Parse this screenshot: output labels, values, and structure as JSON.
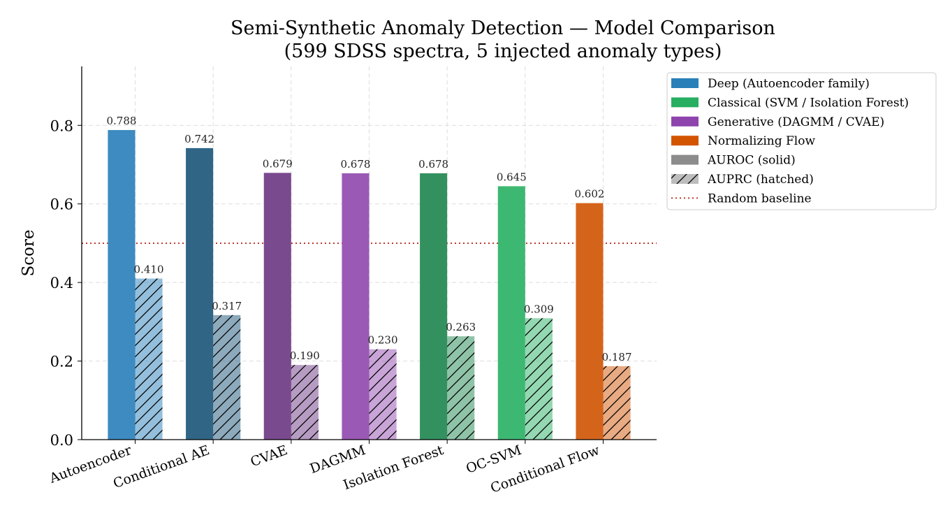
{
  "chart_data": {
    "type": "bar",
    "title": "Semi-Synthetic Anomaly Detection — Model Comparison",
    "subtitle": "(599 SDSS spectra, 5 injected anomaly types)",
    "xlabel": "",
    "ylabel": "Score",
    "ylim": [
      0,
      0.95
    ],
    "yticks": [
      "0.0",
      "0.2",
      "0.4",
      "0.6",
      "0.8"
    ],
    "grid": true,
    "legend_placement": "top-right",
    "categories": [
      "Autoencoder",
      "Conditional AE",
      "CVAE",
      "DAGMM",
      "Isolation Forest",
      "OC-SVM",
      "Conditional Flow"
    ],
    "series": [
      {
        "name": "AUROC (solid)",
        "values": [
          0.788,
          0.742,
          0.679,
          0.678,
          0.678,
          0.645,
          0.602
        ],
        "labels": [
          "0.788",
          "0.742",
          "0.679",
          "0.678",
          "0.678",
          "0.645",
          "0.602"
        ]
      },
      {
        "name": "AUPRC (hatched)",
        "values": [
          0.41,
          0.317,
          0.19,
          0.23,
          0.263,
          0.309,
          0.187
        ],
        "labels": [
          "0.410",
          "0.317",
          "0.190",
          "0.230",
          "0.263",
          "0.309",
          "0.187"
        ]
      }
    ],
    "bar_colors": [
      "#3d8bc0",
      "#306585",
      "#7a4a8f",
      "#9b59b6",
      "#339160",
      "#3db872",
      "#d5641b"
    ],
    "baseline": {
      "name": "Random baseline",
      "value": 0.5,
      "color": "#c0392b"
    },
    "legend": [
      {
        "label": "Deep (Autoencoder family)",
        "color": "#2980b9"
      },
      {
        "label": "Classical (SVM / Isolation Forest)",
        "color": "#27ae60"
      },
      {
        "label": "Generative (DAGMM / CVAE)",
        "color": "#8e44ad"
      },
      {
        "label": "Normalizing Flow",
        "color": "#d35400"
      },
      {
        "label": "AUROC (solid)",
        "color": "#8c8c8c"
      },
      {
        "label": "AUPRC (hatched)",
        "color": "#bdbdbd"
      },
      {
        "label": "Random baseline",
        "color": "#c0392b"
      }
    ]
  }
}
